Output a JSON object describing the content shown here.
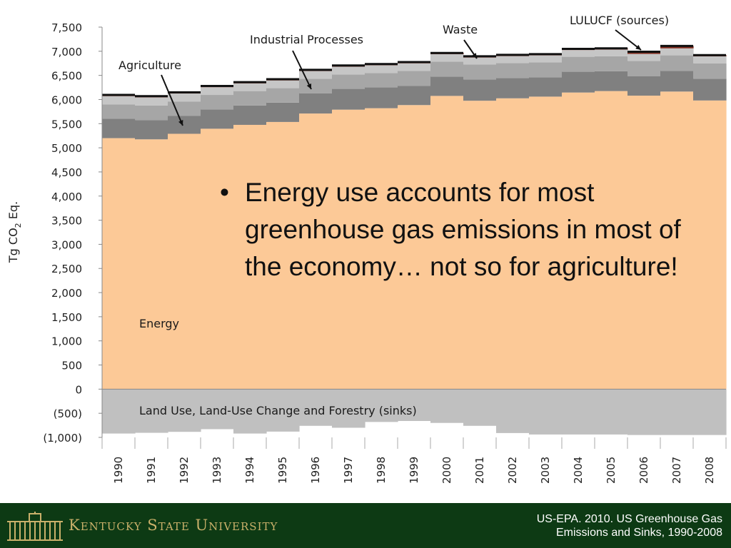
{
  "chart_data": {
    "type": "area",
    "ylabel": "Tg CO",
    "ylabel_subscript": "2",
    "ylabel_suffix": " Eq.",
    "ylim": [
      -1000,
      7500
    ],
    "y_ticks": [
      -1000,
      -500,
      0,
      500,
      1000,
      1500,
      2000,
      2500,
      3000,
      3500,
      4000,
      4500,
      5000,
      5500,
      6000,
      6500,
      7000,
      7500
    ],
    "y_tick_labels": [
      "(1,000)",
      "(500)",
      "0",
      "500",
      "1,000",
      "1,500",
      "2,000",
      "2,500",
      "3,000",
      "3,500",
      "4,000",
      "4,500",
      "5,000",
      "5,500",
      "6,000",
      "6,500",
      "7,000",
      "7,500"
    ],
    "categories": [
      "1990",
      "1991",
      "1992",
      "1993",
      "1994",
      "1995",
      "1996",
      "1997",
      "1998",
      "1999",
      "2000",
      "2001",
      "2002",
      "2003",
      "2004",
      "2005",
      "2006",
      "2007",
      "2008"
    ],
    "series": [
      {
        "name": "Energy",
        "values": [
          5200,
          5175,
          5290,
          5395,
          5475,
          5535,
          5710,
          5790,
          5820,
          5885,
          6075,
          5975,
          6025,
          6060,
          6145,
          6175,
          6080,
          6165,
          5980
        ],
        "color": "#fcc997"
      },
      {
        "name": "Industrial Processes",
        "values": [
          400,
          400,
          370,
          400,
          400,
          400,
          420,
          430,
          430,
          400,
          400,
          440,
          420,
          400,
          430,
          410,
          400,
          430,
          450
        ],
        "color": "#808080"
      },
      {
        "name": "Agriculture",
        "values": [
          300,
          300,
          300,
          300,
          300,
          300,
          300,
          300,
          300,
          310,
          310,
          310,
          310,
          310,
          310,
          310,
          320,
          320,
          320
        ],
        "color": "#a6a6a6"
      },
      {
        "name": "Waste",
        "values": [
          170,
          170,
          165,
          160,
          160,
          160,
          160,
          160,
          160,
          155,
          155,
          145,
          145,
          145,
          140,
          140,
          145,
          145,
          145
        ],
        "color": "#c6c6c6"
      },
      {
        "name": "LULUCF (sources)",
        "values": [
          25,
          25,
          25,
          25,
          25,
          25,
          25,
          25,
          25,
          25,
          25,
          25,
          25,
          25,
          25,
          25,
          45,
          50,
          25
        ],
        "color": "#7f2a1d"
      },
      {
        "name": "Land Use, Land-Use Change and Forestry (sinks)",
        "values": [
          -920,
          -905,
          -885,
          -830,
          -920,
          -880,
          -760,
          -800,
          -680,
          -660,
          -700,
          -760,
          -910,
          -940,
          -940,
          -940,
          -950,
          -950,
          -950
        ],
        "color": "#c0c0c0"
      }
    ],
    "annotations": [
      {
        "text": "Agriculture",
        "target": "Agriculture"
      },
      {
        "text": "Industrial Processes",
        "target": "Industrial Processes"
      },
      {
        "text": "Waste",
        "target": "Waste"
      },
      {
        "text": "LULUCF (sources)",
        "target": "LULUCF (sources)"
      },
      {
        "text": "Energy",
        "target": "Energy"
      },
      {
        "text": "Land Use, Land-Use Change and Forestry (sinks)",
        "target": "Land Use, Land-Use Change and Forestry (sinks)"
      }
    ],
    "grid": false,
    "legend": "none"
  },
  "bullet": {
    "marker": "•",
    "text": "Energy use accounts for most greenhouse gas emissions in most of the economy… not so for agriculture!"
  },
  "footer": {
    "university": "Kentucky State University",
    "citation_line1": "US-EPA. 2010. US Greenhouse Gas",
    "citation_line2": "Emissions and Sinks, 1990-2008",
    "logo_icon": "building-icon",
    "background": "#0d3a14",
    "university_color": "#c9b06a"
  }
}
